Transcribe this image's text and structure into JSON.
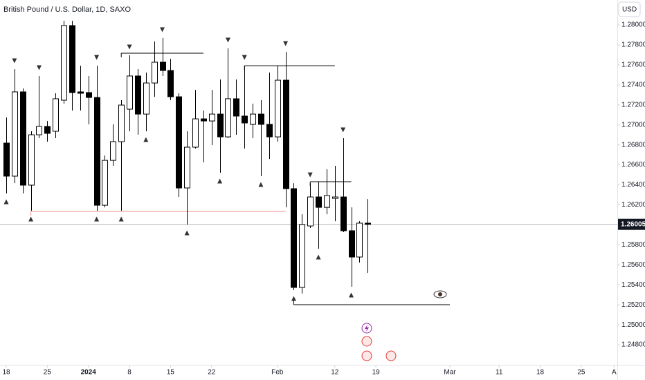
{
  "chart_data": {
    "type": "candlestick",
    "title": "British Pound / U.S. Dollar, 1D, SAXO",
    "currency": "USD",
    "up_color": "#ffffff",
    "down_color": "#000000",
    "wick_color": "#000000",
    "open": [
      1.26818,
      1.26487,
      1.2733,
      1.26397,
      1.26901,
      1.26984,
      1.26936,
      1.27247,
      1.27993,
      1.2733,
      1.27323,
      1.27274,
      1.26196,
      1.26645,
      1.26832,
      1.27157,
      1.27489,
      1.27108,
      1.27419,
      1.27627,
      1.27544,
      1.27281,
      1.26369,
      1.26777,
      1.2706,
      1.27039,
      1.27108,
      1.2688,
      1.27261,
      1.27088,
      1.27005,
      1.27108,
      1.27005,
      1.2688,
      1.27447,
      1.26362,
      1.25374,
      1.25989,
      1.26279,
      1.26175,
      1.26265,
      1.26279,
      1.25941,
      1.25678,
      1.26017
    ],
    "high": [
      1.27074,
      1.27558,
      1.27364,
      1.26936,
      1.27489,
      1.27039,
      1.27316,
      1.28041,
      1.28041,
      1.27592,
      1.27489,
      1.27592,
      1.26694,
      1.27005,
      1.27247,
      1.27696,
      1.27558,
      1.27523,
      1.27834,
      1.27869,
      1.27661,
      1.27316,
      1.26936,
      1.2735,
      1.27143,
      1.2735,
      1.27454,
      1.27765,
      1.27454,
      1.27592,
      1.27212,
      1.27247,
      1.27523,
      1.27592,
      1.2773,
      1.26417,
      1.26106,
      1.26417,
      1.26431,
      1.26556,
      1.2659,
      1.26867,
      1.26175,
      1.26037,
      1.26258
    ],
    "low": [
      1.26314,
      1.26417,
      1.26314,
      1.26141,
      1.26867,
      1.26832,
      1.26867,
      1.27212,
      1.27143,
      1.27143,
      1.27005,
      1.26141,
      1.26175,
      1.2659,
      1.26141,
      1.26936,
      1.26901,
      1.26936,
      1.27281,
      1.27489,
      1.27247,
      1.26279,
      1.26003,
      1.26763,
      1.26625,
      1.26798,
      1.26521,
      1.26867,
      1.26901,
      1.26763,
      1.26867,
      1.26487,
      1.26659,
      1.26832,
      1.26175,
      1.25346,
      1.25312,
      1.25968,
      1.25761,
      1.26106,
      1.26037,
      1.25927,
      1.25381,
      1.25623,
      1.25519
    ],
    "close": [
      1.26487,
      1.2733,
      1.26397,
      1.26901,
      1.26984,
      1.26915,
      1.27261,
      1.27993,
      1.27323,
      1.27316,
      1.27274,
      1.26196,
      1.26645,
      1.26832,
      1.27198,
      1.27489,
      1.27108,
      1.27419,
      1.27627,
      1.27544,
      1.27281,
      1.26369,
      1.26777,
      1.2706,
      1.27039,
      1.27108,
      1.2688,
      1.27261,
      1.27088,
      1.27019,
      1.27108,
      1.27005,
      1.2688,
      1.27447,
      1.26362,
      1.25374,
      1.26003,
      1.26279,
      1.26175,
      1.26293,
      1.26279,
      1.25941,
      1.25678,
      1.26017,
      1.26005
    ],
    "pivot_highs": [
      1,
      4,
      11,
      15,
      19,
      27,
      29,
      34,
      37,
      41
    ],
    "pivot_lows": [
      0,
      3,
      11,
      14,
      17,
      22,
      26,
      31,
      35,
      38,
      42
    ],
    "levels": [
      {
        "start": 14,
        "end": 24,
        "price": 1.27717,
        "color": "#000000"
      },
      {
        "start": 29,
        "end": 40,
        "price": 1.27592,
        "color": "#000000"
      },
      {
        "start": 37,
        "end": 42,
        "price": 1.26431,
        "color": "#000000"
      },
      {
        "start": 35,
        "end": 54,
        "price": 1.25201,
        "color": "#000000"
      },
      {
        "start": 3,
        "end": 34,
        "price": 1.26134,
        "color": "#f28b8b"
      }
    ],
    "last_price": 1.26005,
    "xlim": [
      -0.76,
      74.39
    ],
    "ylim": [
      1.246,
      1.28249
    ],
    "xticks": [
      {
        "value": 0,
        "label": "18"
      },
      {
        "value": 5,
        "label": "25"
      },
      {
        "value": 10,
        "label": "2024"
      },
      {
        "value": 15,
        "label": "8"
      },
      {
        "value": 20,
        "label": "15"
      },
      {
        "value": 25,
        "label": "22"
      },
      {
        "value": 33,
        "label": "Feb"
      },
      {
        "value": 40,
        "label": "12"
      },
      {
        "value": 45,
        "label": "19"
      },
      {
        "value": 54,
        "label": "Mar"
      },
      {
        "value": 60,
        "label": "11"
      },
      {
        "value": 65,
        "label": "18"
      },
      {
        "value": 70,
        "label": "25"
      },
      {
        "value": 74,
        "label": "A"
      }
    ],
    "yticks": [
      {
        "value": 1.28,
        "label": "1.28000"
      },
      {
        "value": 1.278,
        "label": "1.27800"
      },
      {
        "value": 1.276,
        "label": "1.27600"
      },
      {
        "value": 1.274,
        "label": "1.27400"
      },
      {
        "value": 1.272,
        "label": "1.27200"
      },
      {
        "value": 1.27,
        "label": "1.27000"
      },
      {
        "value": 1.268,
        "label": "1.26800"
      },
      {
        "value": 1.266,
        "label": "1.26600"
      },
      {
        "value": 1.264,
        "label": "1.26400"
      },
      {
        "value": 1.262,
        "label": "1.26200"
      },
      {
        "value": 1.258,
        "label": "1.25800"
      },
      {
        "value": 1.256,
        "label": "1.25600"
      },
      {
        "value": 1.254,
        "label": "1.25400"
      },
      {
        "value": 1.252,
        "label": "1.25200"
      },
      {
        "value": 1.25,
        "label": "1.25000"
      },
      {
        "value": 1.248,
        "label": "1.24800"
      }
    ]
  }
}
